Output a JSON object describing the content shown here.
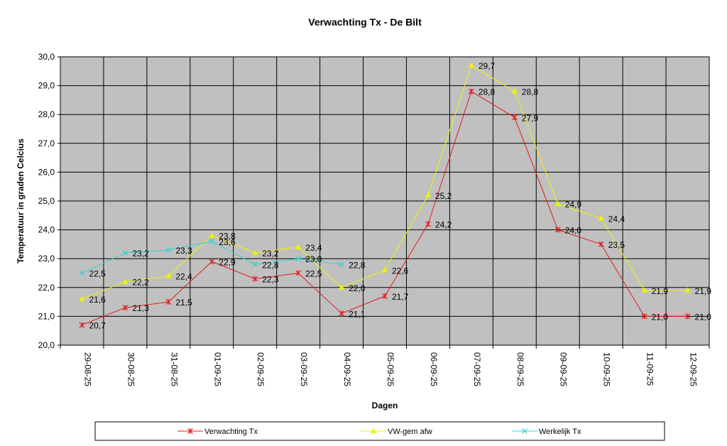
{
  "chart_data": {
    "type": "line",
    "title": "Verwachting Tx - De Bilt",
    "xlabel": "Dagen",
    "ylabel": "Temperatuur in graden Celcius",
    "ylim": [
      20.0,
      30.0
    ],
    "y_ticks": [
      "20,0",
      "21,0",
      "22,0",
      "23,0",
      "24,0",
      "25,0",
      "26,0",
      "27,0",
      "28,0",
      "29,0",
      "30,0"
    ],
    "categories": [
      "29-08-25",
      "30-08-25",
      "31-08-25",
      "01-09-25",
      "02-09-25",
      "03-09-25",
      "04-09-25",
      "05-09-25",
      "06-09-25",
      "07-09-25",
      "08-09-25",
      "09-09-25",
      "10-09-25",
      "11-09-25",
      "12-09-25"
    ],
    "plot_background": "#c0c0c0",
    "grid": true,
    "legend_position": "bottom",
    "series": [
      {
        "name": "Verwachting Tx",
        "color": "#e31a1c",
        "marker": "star",
        "values": [
          20.7,
          21.3,
          21.5,
          22.9,
          22.3,
          22.5,
          21.1,
          21.7,
          24.2,
          28.8,
          27.9,
          24.0,
          23.5,
          21.0,
          21.0
        ],
        "labels": [
          "20,7",
          "21,3",
          "21,5",
          "22,9",
          "22,3",
          "22,5",
          "21,1",
          "21,7",
          "24,2",
          "28,8",
          "27,9",
          "24,0",
          "23,5",
          "21,0",
          "21,0"
        ]
      },
      {
        "name": "VW-gem afw",
        "color": "#f2f200",
        "marker": "triangle",
        "values": [
          21.6,
          22.2,
          22.4,
          23.8,
          23.2,
          23.4,
          22.0,
          22.6,
          25.2,
          29.7,
          28.8,
          24.9,
          24.4,
          21.9,
          21.9
        ],
        "labels": [
          "21,6",
          "22,2",
          "22,4",
          "23,8",
          "23,2",
          "23,4",
          "22,0",
          "22,6",
          "25,2",
          "29,7",
          "28,8",
          "24,9",
          "24,4",
          "21,9",
          "21,9"
        ]
      },
      {
        "name": "Werkelijk Tx",
        "color": "#2fd3d3",
        "marker": "x",
        "values": [
          22.5,
          23.2,
          23.3,
          23.6,
          22.8,
          23.0,
          22.8,
          null,
          null,
          null,
          null,
          null,
          null,
          null,
          null
        ],
        "labels": [
          "22,5",
          "23,2",
          "23,3",
          "23,6",
          "22,8",
          "23,0",
          "22,8",
          null,
          null,
          null,
          null,
          null,
          null,
          null,
          null
        ]
      }
    ]
  }
}
